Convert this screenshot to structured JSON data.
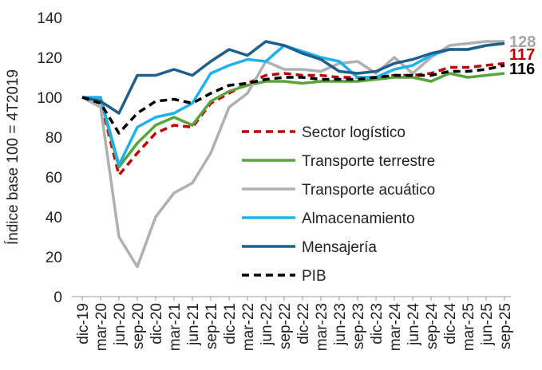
{
  "chart_data": {
    "type": "line",
    "y_label": "Índice base 100 = 4T2019",
    "categories": [
      "dic-19",
      "mar-20",
      "jun-20",
      "sep-20",
      "dic-20",
      "mar-21",
      "jun-21",
      "sep-21",
      "dic-21",
      "mar-22",
      "jun-22",
      "sep-22",
      "dic-22",
      "mar-23",
      "jun-23",
      "sep-23",
      "dic-23",
      "mar-24",
      "jun-24",
      "sep-24",
      "dic-24",
      "mar-25",
      "jun-25",
      "sep-25"
    ],
    "series": [
      {
        "name": "Sector logístico",
        "color": "#c00000",
        "dash": true,
        "values": [
          100,
          98,
          61,
          72,
          82,
          86,
          85,
          97,
          102,
          107,
          111,
          112,
          111,
          111,
          110,
          110,
          110,
          111,
          111,
          112,
          115,
          115,
          116,
          117
        ]
      },
      {
        "name": "Transporte terrestre",
        "color": "#5aa43c",
        "dash": false,
        "values": [
          100,
          99,
          65,
          77,
          86,
          90,
          86,
          98,
          103,
          106,
          108,
          108,
          107,
          108,
          108,
          108,
          109,
          110,
          110,
          108,
          112,
          110,
          111,
          112
        ]
      },
      {
        "name": "Transporte acuático",
        "color": "#b0b0b0",
        "dash": false,
        "values": [
          100,
          95,
          30,
          15,
          40,
          52,
          57,
          72,
          95,
          102,
          118,
          114,
          114,
          113,
          117,
          118,
          112,
          120,
          112,
          120,
          126,
          127,
          128,
          128
        ]
      },
      {
        "name": "Almacenamiento",
        "color": "#1fb1ec",
        "dash": false,
        "values": [
          100,
          100,
          66,
          85,
          90,
          92,
          97,
          112,
          116,
          119,
          118,
          126,
          123,
          120,
          118,
          110,
          110,
          114,
          116,
          121,
          124,
          124,
          126,
          127
        ]
      },
      {
        "name": "Mensajería",
        "color": "#1f5f8b",
        "dash": false,
        "values": [
          100,
          98,
          92,
          111,
          111,
          114,
          111,
          118,
          124,
          121,
          128,
          126,
          122,
          119,
          113,
          112,
          113,
          117,
          119,
          122,
          124,
          124,
          126,
          127
        ]
      },
      {
        "name": "PIB",
        "color": "#000000",
        "dash": true,
        "values": [
          100,
          97,
          82,
          92,
          98,
          99,
          97,
          102,
          106,
          107,
          109,
          110,
          110,
          109,
          109,
          109,
          110,
          111,
          111,
          111,
          113,
          113,
          114,
          116
        ]
      }
    ],
    "annotations": [
      {
        "text": "128",
        "y": 128,
        "color": "#a6a6a6"
      },
      {
        "text": "117",
        "y": 117,
        "color": "#c00000"
      },
      {
        "text": "116",
        "y": 116,
        "color": "#000000"
      }
    ],
    "ylim": [
      0,
      140
    ],
    "yticks": [
      0,
      20,
      40,
      60,
      80,
      100,
      120,
      140
    ]
  }
}
